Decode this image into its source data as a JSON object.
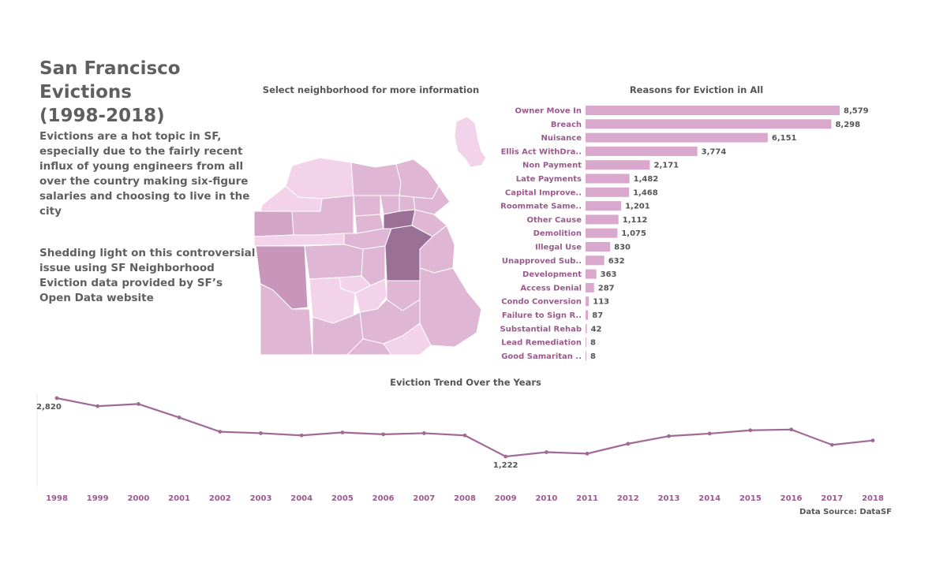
{
  "header": {
    "title_line1": "San Francisco Evictions",
    "title_line2": "(1998-2018)",
    "paragraph1": "Evictions are a hot topic in SF, especially due to the fairly recent influx of young engineers from all over the country making six-figure salaries and choosing to live in the city",
    "paragraph2": "Shedding light on this controversial issue using SF Neighborhood Eviction data provided by SF’s Open Data website"
  },
  "map": {
    "title": "Select neighborhood for more information"
  },
  "footer": {
    "source": "Data Source: DataSF"
  },
  "colors": {
    "bar": "#d8a9cc",
    "label": "#9a5a8d",
    "line": "#a06a97",
    "map_light": "#f3d3e9",
    "map_mid": "#dfb6d4",
    "map_dark": "#9b7097"
  },
  "chart_data": [
    {
      "type": "bar",
      "orientation": "horizontal",
      "title": "Reasons for Eviction in All",
      "categories": [
        "Owner Move In",
        "Breach",
        "Nuisance",
        "Ellis Act WithDra..",
        "Non Payment",
        "Late Payments",
        "Capital Improve..",
        "Roommate Same..",
        "Other Cause",
        "Demolition",
        "Illegal Use",
        "Unapproved Sub..",
        "Development",
        "Access Denial",
        "Condo Conversion",
        "Failure to Sign R..",
        "Substantial Rehab",
        "Lead Remediation",
        "Good Samaritan .."
      ],
      "values": [
        8579,
        8298,
        6151,
        3774,
        2171,
        1482,
        1468,
        1201,
        1112,
        1075,
        830,
        632,
        363,
        287,
        113,
        87,
        42,
        8,
        8
      ],
      "value_labels": [
        "8,579",
        "8,298",
        "6,151",
        "3,774",
        "2,171",
        "1,482",
        "1,468",
        "1,201",
        "1,112",
        "1,075",
        "830",
        "632",
        "363",
        "287",
        "113",
        "87",
        "42",
        "8",
        "8"
      ],
      "xlim": [
        0,
        9000
      ],
      "grid": false
    },
    {
      "type": "line",
      "title": "Eviction Trend Over the Years",
      "x": [
        "1998",
        "1999",
        "2000",
        "2001",
        "2002",
        "2003",
        "2004",
        "2005",
        "2006",
        "2007",
        "2008",
        "2009",
        "2010",
        "2011",
        "2012",
        "2013",
        "2014",
        "2015",
        "2016",
        "2017",
        "2018"
      ],
      "values": [
        2820,
        2600,
        2660,
        2290,
        1900,
        1860,
        1800,
        1880,
        1830,
        1860,
        1800,
        1222,
        1340,
        1300,
        1570,
        1780,
        1850,
        1940,
        1960,
        1540,
        1660
      ],
      "annotations": [
        {
          "x": "1998",
          "label": "2,820"
        },
        {
          "x": "2009",
          "label": "1,222"
        }
      ],
      "ylim": [
        1000,
        3000
      ],
      "grid": false
    }
  ]
}
